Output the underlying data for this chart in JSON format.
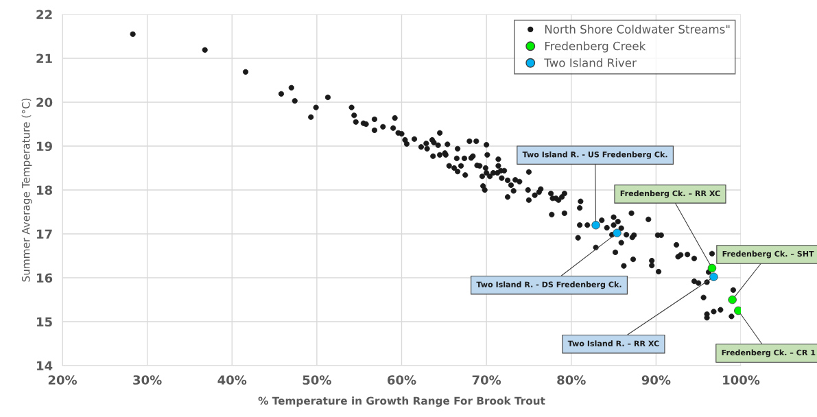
{
  "chart_data": {
    "type": "scatter",
    "xlabel": "% Temperature in Growth Range For Brook Trout",
    "ylabel": "Summer Average Temperature (°C)",
    "xlim": [
      20,
      100
    ],
    "xticks": [
      {
        "value": 20,
        "label": "20%"
      },
      {
        "value": 30,
        "label": "30%"
      },
      {
        "value": 40,
        "label": "40%"
      },
      {
        "value": 50,
        "label": "50%"
      },
      {
        "value": 60,
        "label": "60%"
      },
      {
        "value": 70,
        "label": "70%"
      },
      {
        "value": 80,
        "label": "80%"
      },
      {
        "value": 90,
        "label": "90%"
      },
      {
        "value": 100,
        "label": "100%"
      }
    ],
    "ylim": [
      14,
      22
    ],
    "yticks": [
      14,
      15,
      16,
      17,
      18,
      19,
      20,
      21,
      22
    ],
    "grid": true,
    "legend": "top right",
    "marker": "circle",
    "series": [
      {
        "name": "North Shore Coldwater Streams\"",
        "color": "#1a1a1a",
        "x": [
          28.3,
          36.8,
          41.6,
          45.8,
          47.0,
          47.4,
          49.3,
          49.9,
          51.3,
          54.1,
          54.4,
          54.6,
          55.5,
          55.8,
          56.8,
          56.8,
          57.8,
          59.0,
          59.2,
          59.6,
          60.0,
          60.4,
          60.6,
          61.5,
          62.3,
          62.9,
          63.0,
          63.6,
          63.8,
          64.3,
          64.5,
          63.7,
          64.5,
          65.1,
          65.2,
          65.4,
          65.6,
          66.2,
          66.6,
          66.6,
          66.5,
          67.0,
          67.4,
          67.5,
          68.0,
          68.2,
          68.4,
          68.8,
          68.9,
          69.2,
          69.5,
          69.9,
          70.0,
          70.1,
          69.6,
          69.8,
          70.0,
          70.4,
          70.8,
          71.3,
          71.4,
          71.4,
          71.7,
          71.8,
          72.1,
          72.5,
          72.5,
          72.9,
          73.2,
          73.4,
          73.9,
          74.9,
          75.0,
          75.0,
          75.7,
          76.2,
          76.4,
          77.6,
          77.8,
          78.2,
          78.5,
          78.9,
          79.2,
          81.1,
          77.7,
          79.2,
          81.0,
          81.0,
          81.9,
          80.8,
          82.9,
          83.6,
          84.2,
          85.0,
          85.0,
          85.5,
          85.9,
          84.8,
          86.5,
          85.9,
          85.2,
          87.1,
          87.4,
          87.2,
          86.2,
          87.3,
          89.1,
          89.5,
          89.5,
          90.2,
          90.6,
          90.3,
          92.4,
          92.6,
          92.9,
          93.7,
          94.5,
          94.5,
          95.0,
          96.0,
          95.6,
          96.2,
          96.6,
          96.0,
          96.0,
          96.8,
          97.6,
          99.1,
          98.9
        ],
        "values": [
          21.55,
          21.19,
          20.69,
          20.19,
          20.33,
          20.03,
          19.66,
          19.88,
          20.11,
          19.88,
          19.7,
          19.55,
          19.52,
          19.5,
          19.61,
          19.36,
          19.44,
          19.41,
          19.64,
          19.3,
          19.28,
          19.14,
          19.05,
          19.16,
          18.98,
          19.06,
          18.94,
          19.14,
          19.08,
          19.02,
          19.3,
          18.77,
          18.8,
          18.84,
          18.8,
          19.04,
          18.55,
          18.5,
          18.94,
          18.42,
          18.72,
          18.55,
          18.72,
          18.34,
          19.11,
          18.73,
          18.77,
          19.11,
          18.56,
          18.55,
          18.31,
          18.5,
          19.03,
          18.8,
          18.09,
          18.0,
          18.39,
          18.31,
          18.39,
          18.39,
          18.7,
          18.55,
          18.44,
          18.27,
          18.44,
          18.22,
          17.84,
          18.11,
          17.98,
          18.23,
          18.19,
          18.0,
          18.41,
          17.77,
          17.88,
          17.95,
          18.02,
          17.92,
          17.81,
          17.81,
          17.77,
          17.84,
          17.92,
          17.74,
          17.44,
          17.47,
          17.59,
          17.2,
          17.2,
          16.91,
          16.69,
          17.31,
          17.14,
          17.38,
          17.2,
          17.28,
          17.13,
          16.98,
          16.98,
          16.8,
          16.58,
          17.47,
          16.97,
          16.92,
          16.27,
          16.42,
          17.33,
          16.39,
          16.28,
          16.97,
          16.97,
          16.14,
          16.75,
          16.48,
          16.52,
          16.53,
          16.44,
          15.92,
          15.88,
          15.9,
          15.55,
          16.13,
          16.55,
          15.17,
          15.09,
          15.23,
          15.27,
          15.72,
          15.12
        ]
      },
      {
        "name": "Fredenberg Creek",
        "color": "#00ee00",
        "x": [
          96.6,
          99.0,
          99.7
        ],
        "values": [
          16.22,
          15.5,
          15.25
        ]
      },
      {
        "name": "Two Island River",
        "color": "#00b0f0",
        "x": [
          82.9,
          85.4,
          96.8
        ],
        "values": [
          17.2,
          17.02,
          16.02
        ]
      }
    ],
    "annotations": [
      {
        "text": "Two Island R. - US Fredenberg Ck.",
        "x": 82.9,
        "y": 17.2
      },
      {
        "text": "Two Island R. - DS Fredenberg Ck.",
        "x": 85.4,
        "y": 17.02
      },
      {
        "text": "Two Island R. – RR XC",
        "x": 96.8,
        "y": 16.02
      },
      {
        "text": "Fredenberg Ck. – RR XC",
        "x": 96.6,
        "y": 16.22
      },
      {
        "text": "Fredenberg Ck. – SHT",
        "x": 99.0,
        "y": 15.5
      },
      {
        "text": "Fredenberg Ck. – CR 1",
        "x": 99.7,
        "y": 15.25
      }
    ]
  }
}
